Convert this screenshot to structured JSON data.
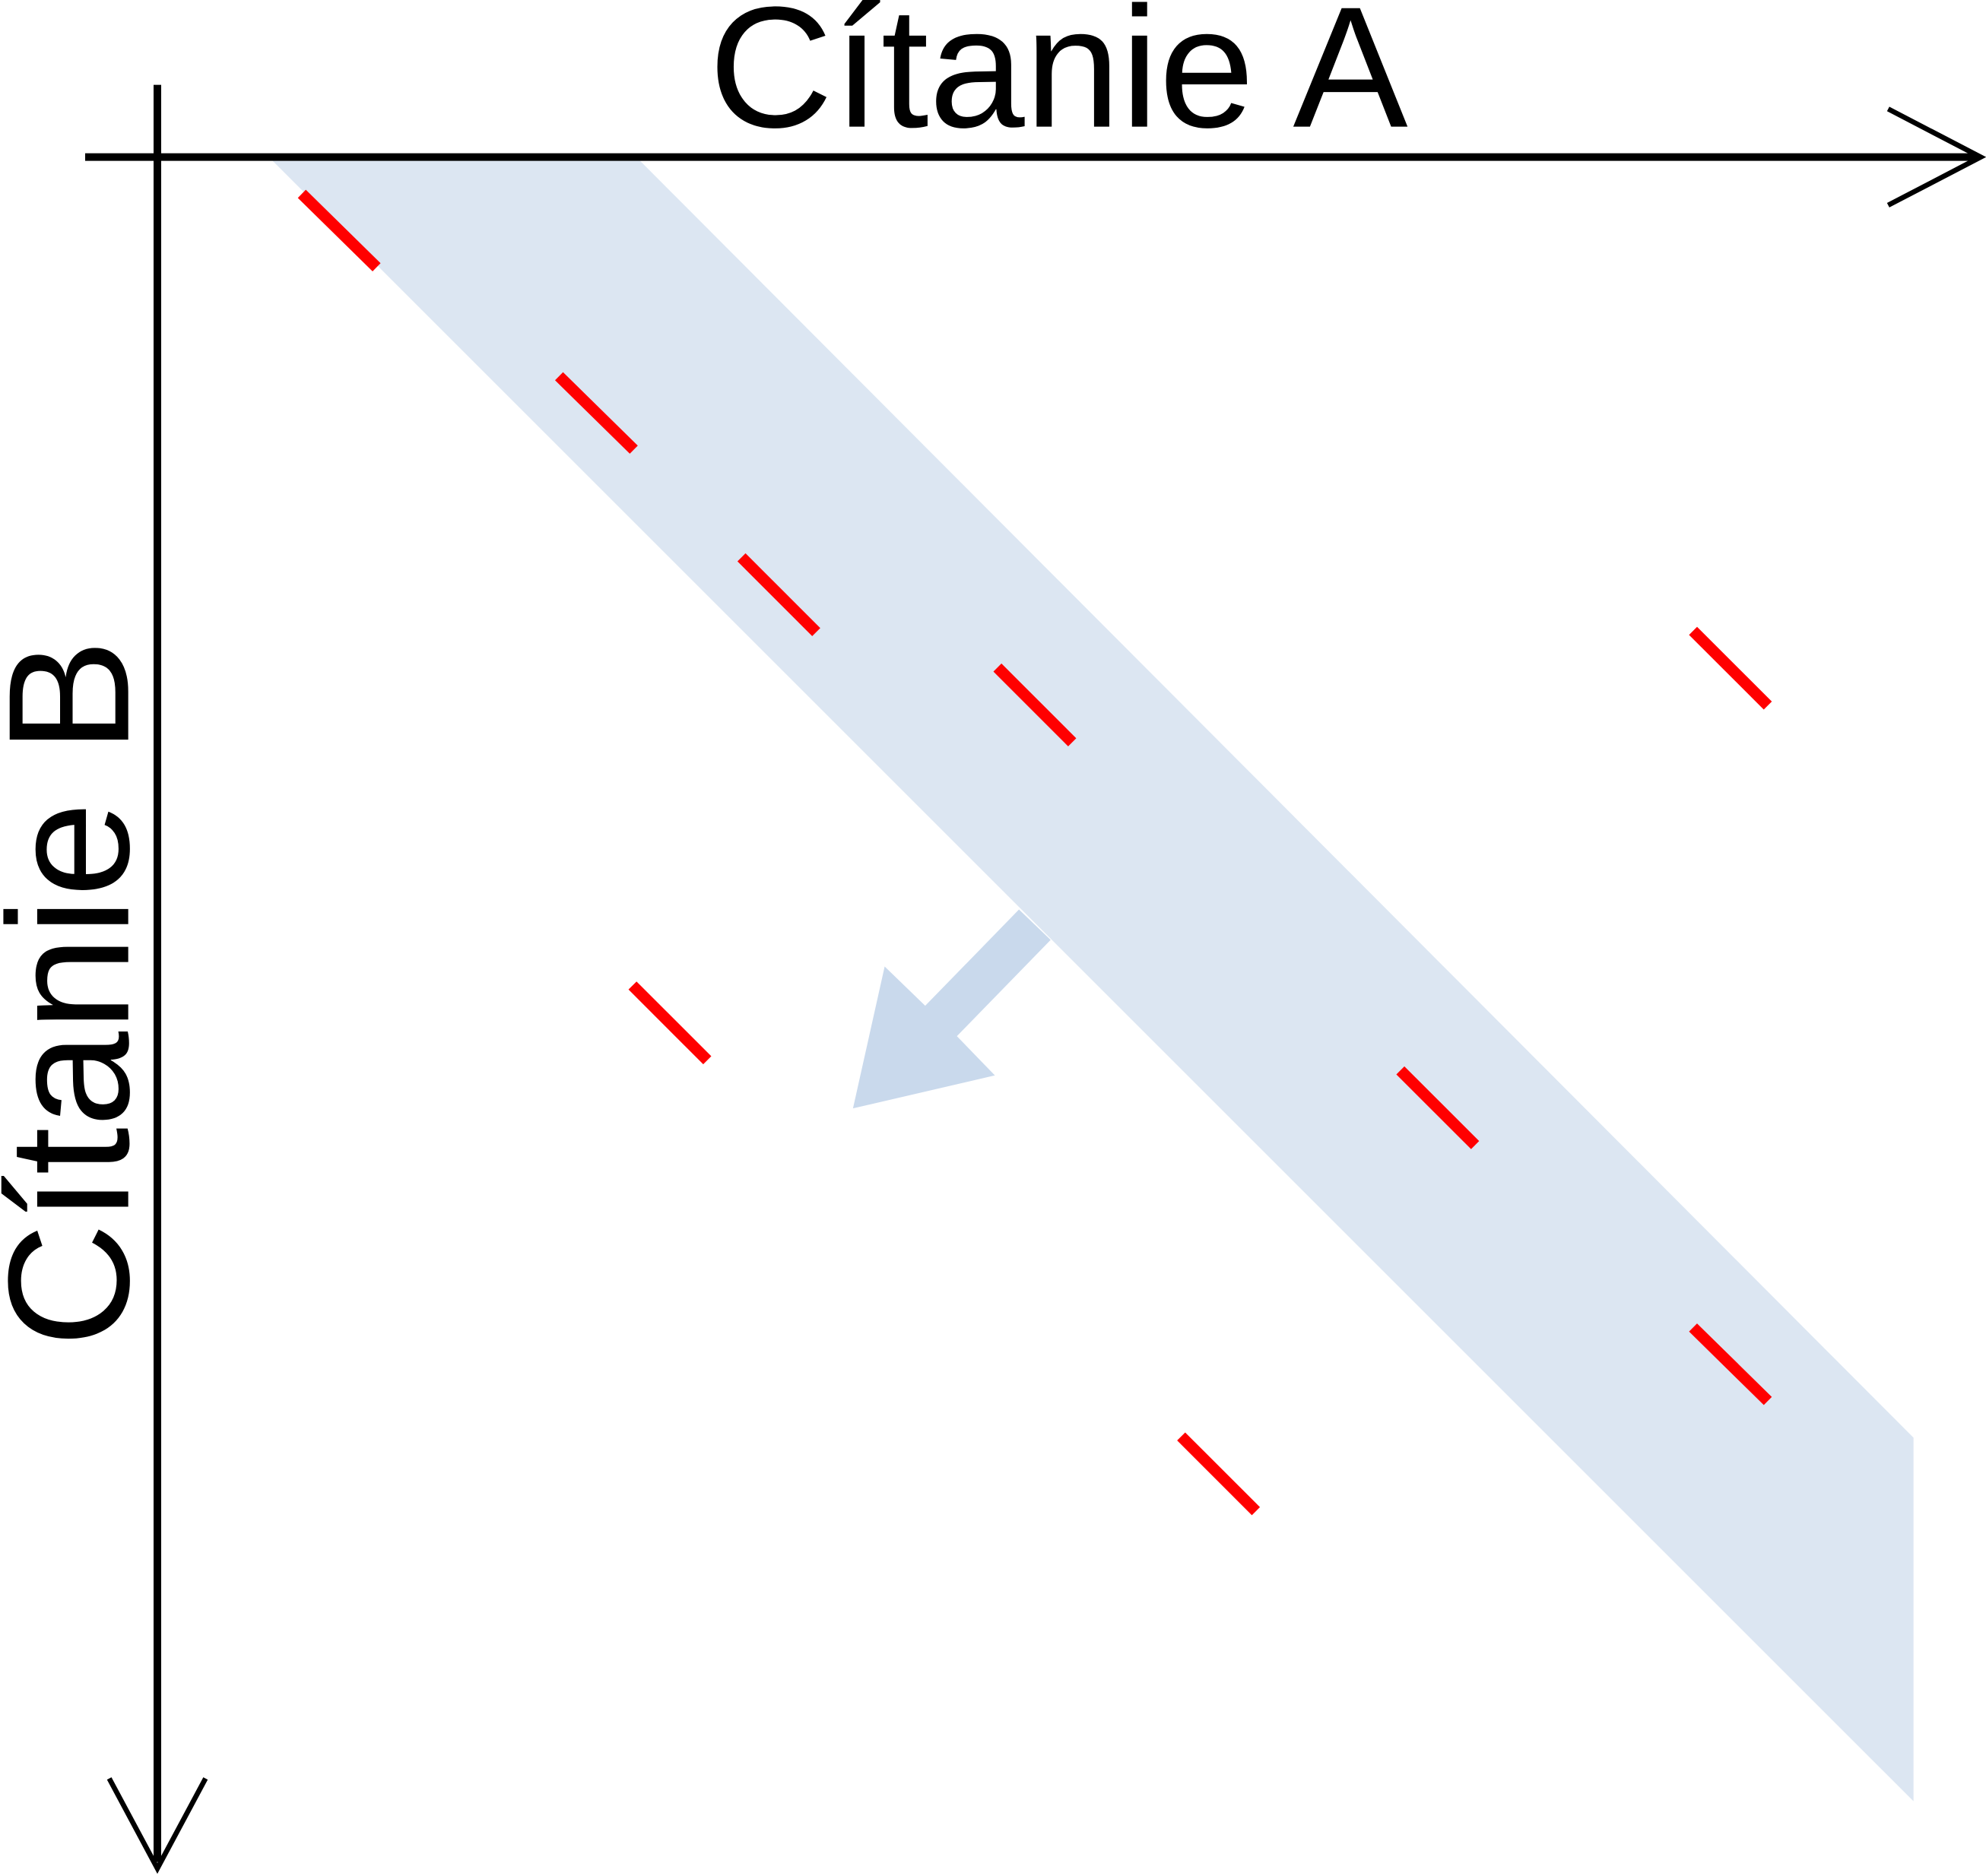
{
  "axes": {
    "horizontal_label": "Čítanie A",
    "vertical_label": "Čítanie B"
  },
  "colors": {
    "axis": "#000000",
    "band": "#dce6f2",
    "arrow": "#c9d9ec",
    "match_mark": "#ff0000"
  }
}
